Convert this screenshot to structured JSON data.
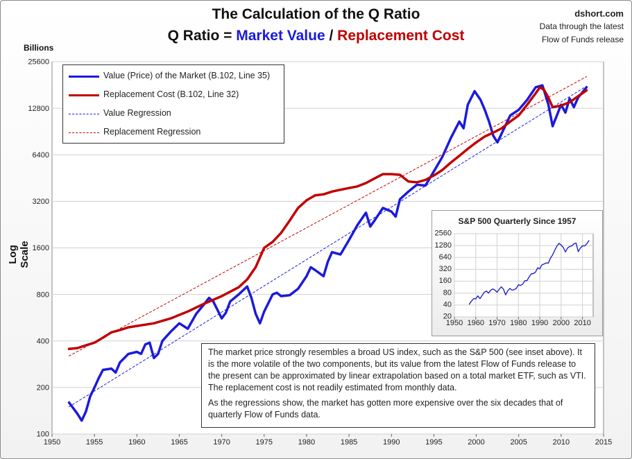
{
  "header": {
    "title": "The Calculation of the Q Ratio",
    "subtitle_prefix": "Q Ratio = ",
    "subtitle_market": "Market Value",
    "subtitle_sep": " / ",
    "subtitle_replacement": "Replacement Cost"
  },
  "source": {
    "site": "dshort.com",
    "line1": "Data through the latest",
    "line2": "Flow of Funds release"
  },
  "colors": {
    "market": "#1a1adb",
    "replacement": "#c00000",
    "inset_line": "#2222cc"
  },
  "legend_items": [
    {
      "label": "Value (Price) of the Market (B.102, Line 35)",
      "style": "solid",
      "color": "#1a1adb"
    },
    {
      "label": "Replacement Cost (B.102, Line 32)",
      "style": "solid",
      "color": "#c00000"
    },
    {
      "label": "Value Regression",
      "style": "dashed",
      "color": "#1a1adb"
    },
    {
      "label": "Replacement Regression",
      "style": "dashed",
      "color": "#c00000"
    }
  ],
  "note": {
    "p1": "The market price strongly resembles a broad US index, such as the S&P 500 (see inset above). It is the more volatile of the two components, but its value from the latest Flow of Funds release to the present can be approximated by linear extrapolation based on a total market ETF, such as VTI. The replacement cost is not readily estimated from monthly data.",
    "p2": "As the regressions show, the market has gotten more expensive over the six decades that of quarterly Flow of Funds data."
  },
  "chart_data": [
    {
      "type": "line",
      "title": "The Calculation of the Q Ratio",
      "ylabel": "Log Scale",
      "yunits": "Billions",
      "yscale": "log",
      "xlim": [
        1950,
        2015
      ],
      "ylim": [
        100,
        25600
      ],
      "yticks": [
        100,
        200,
        400,
        800,
        1600,
        3200,
        6400,
        12800,
        25600
      ],
      "xticks": [
        1950,
        1955,
        1960,
        1965,
        1970,
        1975,
        1980,
        1985,
        1990,
        1995,
        2000,
        2005,
        2010,
        2015
      ],
      "grid": true,
      "legend": "top-left",
      "series": [
        {
          "name": "Value (Price) of the Market (B.102, Line 35)",
          "points": [
            [
              1952.0,
              160
            ],
            [
              1953.0,
              135
            ],
            [
              1953.5,
              122
            ],
            [
              1954.0,
              140
            ],
            [
              1954.5,
              175
            ],
            [
              1955.0,
              200
            ],
            [
              1955.5,
              230
            ],
            [
              1956.0,
              260
            ],
            [
              1957.0,
              265
            ],
            [
              1957.5,
              250
            ],
            [
              1958.0,
              290
            ],
            [
              1959.0,
              330
            ],
            [
              1960.0,
              340
            ],
            [
              1960.5,
              330
            ],
            [
              1961.0,
              380
            ],
            [
              1961.5,
              390
            ],
            [
              1962.0,
              310
            ],
            [
              1962.5,
              330
            ],
            [
              1963.0,
              400
            ],
            [
              1964.0,
              460
            ],
            [
              1965.0,
              520
            ],
            [
              1966.0,
              480
            ],
            [
              1967.0,
              600
            ],
            [
              1968.0,
              700
            ],
            [
              1968.5,
              760
            ],
            [
              1969.0,
              720
            ],
            [
              1970.0,
              560
            ],
            [
              1970.5,
              610
            ],
            [
              1971.0,
              720
            ],
            [
              1972.0,
              800
            ],
            [
              1973.0,
              900
            ],
            [
              1973.5,
              760
            ],
            [
              1974.0,
              600
            ],
            [
              1974.5,
              520
            ],
            [
              1975.0,
              620
            ],
            [
              1976.0,
              800
            ],
            [
              1976.5,
              820
            ],
            [
              1977.0,
              780
            ],
            [
              1978.0,
              790
            ],
            [
              1979.0,
              870
            ],
            [
              1980.0,
              1050
            ],
            [
              1980.5,
              1200
            ],
            [
              1981.0,
              1150
            ],
            [
              1982.0,
              1050
            ],
            [
              1982.5,
              1300
            ],
            [
              1983.0,
              1500
            ],
            [
              1984.0,
              1450
            ],
            [
              1985.0,
              1800
            ],
            [
              1986.0,
              2250
            ],
            [
              1987.0,
              2700
            ],
            [
              1987.5,
              2200
            ],
            [
              1988.0,
              2400
            ],
            [
              1989.0,
              2900
            ],
            [
              1990.0,
              2750
            ],
            [
              1990.5,
              2550
            ],
            [
              1991.0,
              3300
            ],
            [
              1992.0,
              3700
            ],
            [
              1993.0,
              4100
            ],
            [
              1994.0,
              4050
            ],
            [
              1995.0,
              5000
            ],
            [
              1996.0,
              6200
            ],
            [
              1997.0,
              8200
            ],
            [
              1998.0,
              10500
            ],
            [
              1998.5,
              9500
            ],
            [
              1999.0,
              13500
            ],
            [
              1999.8,
              16500
            ],
            [
              2000.5,
              14500
            ],
            [
              2001.0,
              12500
            ],
            [
              2001.5,
              10500
            ],
            [
              2002.0,
              8500
            ],
            [
              2002.5,
              7700
            ],
            [
              2003.0,
              8800
            ],
            [
              2004.0,
              11500
            ],
            [
              2005.0,
              12500
            ],
            [
              2006.0,
              14500
            ],
            [
              2007.0,
              17500
            ],
            [
              2007.8,
              18000
            ],
            [
              2008.5,
              13500
            ],
            [
              2009.0,
              9800
            ],
            [
              2009.5,
              11500
            ],
            [
              2010.0,
              13500
            ],
            [
              2010.5,
              12000
            ],
            [
              2011.0,
              14800
            ],
            [
              2011.5,
              13000
            ],
            [
              2012.0,
              15000
            ],
            [
              2013.0,
              17500
            ]
          ]
        },
        {
          "name": "Replacement Cost (B.102, Line 32)",
          "points": [
            [
              1952.0,
              355
            ],
            [
              1953.0,
              360
            ],
            [
              1954.0,
              375
            ],
            [
              1955.0,
              390
            ],
            [
              1956.0,
              420
            ],
            [
              1957.0,
              455
            ],
            [
              1958.0,
              470
            ],
            [
              1959.0,
              490
            ],
            [
              1960.0,
              500
            ],
            [
              1962.0,
              520
            ],
            [
              1964.0,
              560
            ],
            [
              1966.0,
              620
            ],
            [
              1968.0,
              700
            ],
            [
              1970.0,
              780
            ],
            [
              1972.0,
              890
            ],
            [
              1973.0,
              1000
            ],
            [
              1974.0,
              1200
            ],
            [
              1975.0,
              1600
            ],
            [
              1976.0,
              1750
            ],
            [
              1977.0,
              2000
            ],
            [
              1978.0,
              2400
            ],
            [
              1979.0,
              2900
            ],
            [
              1980.0,
              3250
            ],
            [
              1981.0,
              3500
            ],
            [
              1982.0,
              3550
            ],
            [
              1983.0,
              3700
            ],
            [
              1984.0,
              3800
            ],
            [
              1985.0,
              3900
            ],
            [
              1986.0,
              4000
            ],
            [
              1987.0,
              4200
            ],
            [
              1988.0,
              4500
            ],
            [
              1989.0,
              4800
            ],
            [
              1990.0,
              4800
            ],
            [
              1991.0,
              4750
            ],
            [
              1992.0,
              4300
            ],
            [
              1993.0,
              4250
            ],
            [
              1994.0,
              4400
            ],
            [
              1995.0,
              4700
            ],
            [
              1996.0,
              5100
            ],
            [
              1997.0,
              5700
            ],
            [
              1998.0,
              6300
            ],
            [
              1999.0,
              7000
            ],
            [
              2000.0,
              7700
            ],
            [
              2001.0,
              8400
            ],
            [
              2002.0,
              8900
            ],
            [
              2003.0,
              9500
            ],
            [
              2004.0,
              10500
            ],
            [
              2005.0,
              11500
            ],
            [
              2006.0,
              13500
            ],
            [
              2007.0,
              16000
            ],
            [
              2007.5,
              17500
            ],
            [
              2008.0,
              16800
            ],
            [
              2008.5,
              15000
            ],
            [
              2009.0,
              13000
            ],
            [
              2010.0,
              13300
            ],
            [
              2011.0,
              14000
            ],
            [
              2012.0,
              15300
            ],
            [
              2013.0,
              16700
            ]
          ]
        },
        {
          "name": "Value Regression",
          "points": [
            [
              1952.0,
              150
            ],
            [
              2013.0,
              17800
            ]
          ]
        },
        {
          "name": "Replacement Regression",
          "points": [
            [
              1952.0,
              320
            ],
            [
              2013.0,
              20500
            ]
          ]
        }
      ]
    },
    {
      "type": "line",
      "title": "S&P 500 Quarterly Since 1957",
      "yscale": "log",
      "xlim": [
        1950,
        2015
      ],
      "ylim": [
        20,
        2560
      ],
      "yticks": [
        20,
        40,
        80,
        160,
        320,
        640,
        1280,
        2560
      ],
      "xticks": [
        1950,
        1960,
        1970,
        1980,
        1990,
        2000,
        2010
      ],
      "series": [
        {
          "points": [
            [
              1957,
              42
            ],
            [
              1958,
              50
            ],
            [
              1959,
              58
            ],
            [
              1960,
              57
            ],
            [
              1961,
              68
            ],
            [
              1962,
              58
            ],
            [
              1963,
              70
            ],
            [
              1964,
              84
            ],
            [
              1965,
              90
            ],
            [
              1966,
              80
            ],
            [
              1967,
              95
            ],
            [
              1968,
              102
            ],
            [
              1969,
              95
            ],
            [
              1970,
              84
            ],
            [
              1971,
              100
            ],
            [
              1972,
              115
            ],
            [
              1973,
              100
            ],
            [
              1974,
              72
            ],
            [
              1975,
              92
            ],
            [
              1976,
              105
            ],
            [
              1977,
              95
            ],
            [
              1978,
              98
            ],
            [
              1979,
              105
            ],
            [
              1980,
              130
            ],
            [
              1981,
              125
            ],
            [
              1982,
              135
            ],
            [
              1983,
              165
            ],
            [
              1984,
              165
            ],
            [
              1985,
              205
            ],
            [
              1986,
              245
            ],
            [
              1987,
              250
            ],
            [
              1988,
              270
            ],
            [
              1989,
              350
            ],
            [
              1990,
              330
            ],
            [
              1991,
              415
            ],
            [
              1992,
              435
            ],
            [
              1993,
              465
            ],
            [
              1994,
              460
            ],
            [
              1995,
              615
            ],
            [
              1996,
              740
            ],
            [
              1997,
              970
            ],
            [
              1998,
              1230
            ],
            [
              1999,
              1460
            ],
            [
              2000,
              1320
            ],
            [
              2001,
              1150
            ],
            [
              2002,
              880
            ],
            [
              2003,
              1110
            ],
            [
              2004,
              1210
            ],
            [
              2005,
              1250
            ],
            [
              2006,
              1420
            ],
            [
              2007,
              1470
            ],
            [
              2008,
              900
            ],
            [
              2009,
              1100
            ],
            [
              2010,
              1260
            ],
            [
              2011,
              1250
            ],
            [
              2012,
              1420
            ],
            [
              2013,
              1700
            ]
          ]
        }
      ]
    }
  ]
}
